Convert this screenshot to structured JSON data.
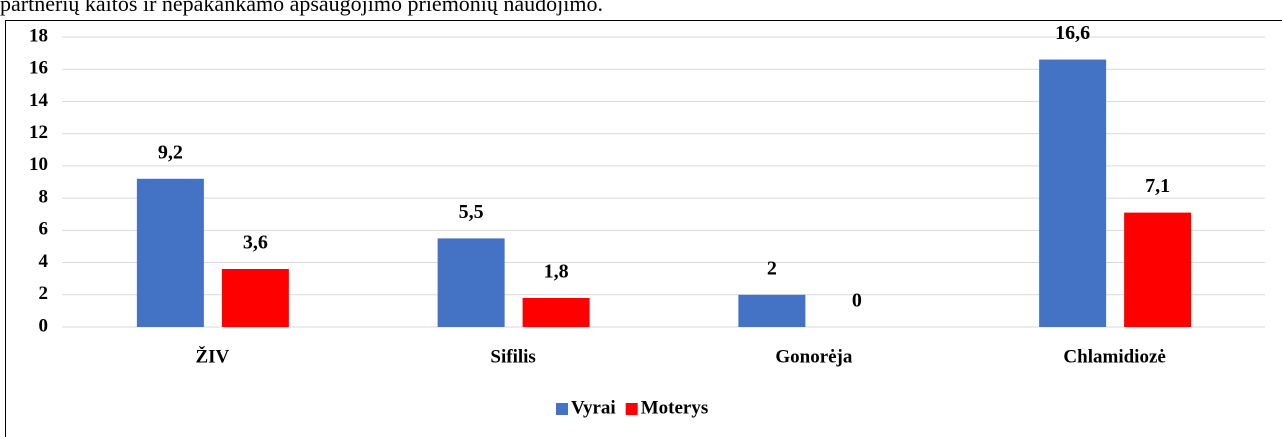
{
  "caption": "partnerių kaitos ir nepakankamo apsaugojimo priemonių naudojimo.",
  "chart_data": {
    "type": "bar",
    "categories": [
      "ŽIV",
      "Sifilis",
      "Gonorėja",
      "Chlamidiozė"
    ],
    "series": [
      {
        "name": "Vyrai",
        "color": "#4472c4",
        "values": [
          9.2,
          5.5,
          2,
          16.6
        ],
        "value_labels": [
          "9,2",
          "5,5",
          "2",
          "16,6"
        ]
      },
      {
        "name": "Moterys",
        "color": "#ff0000",
        "values": [
          3.6,
          1.8,
          0,
          7.1
        ],
        "value_labels": [
          "3,6",
          "1,8",
          "0",
          "7,1"
        ]
      }
    ],
    "ylim": [
      0,
      18
    ],
    "yticks": [
      0,
      2,
      4,
      6,
      8,
      10,
      12,
      14,
      16,
      18
    ],
    "grid": true,
    "legend": "bottom"
  }
}
